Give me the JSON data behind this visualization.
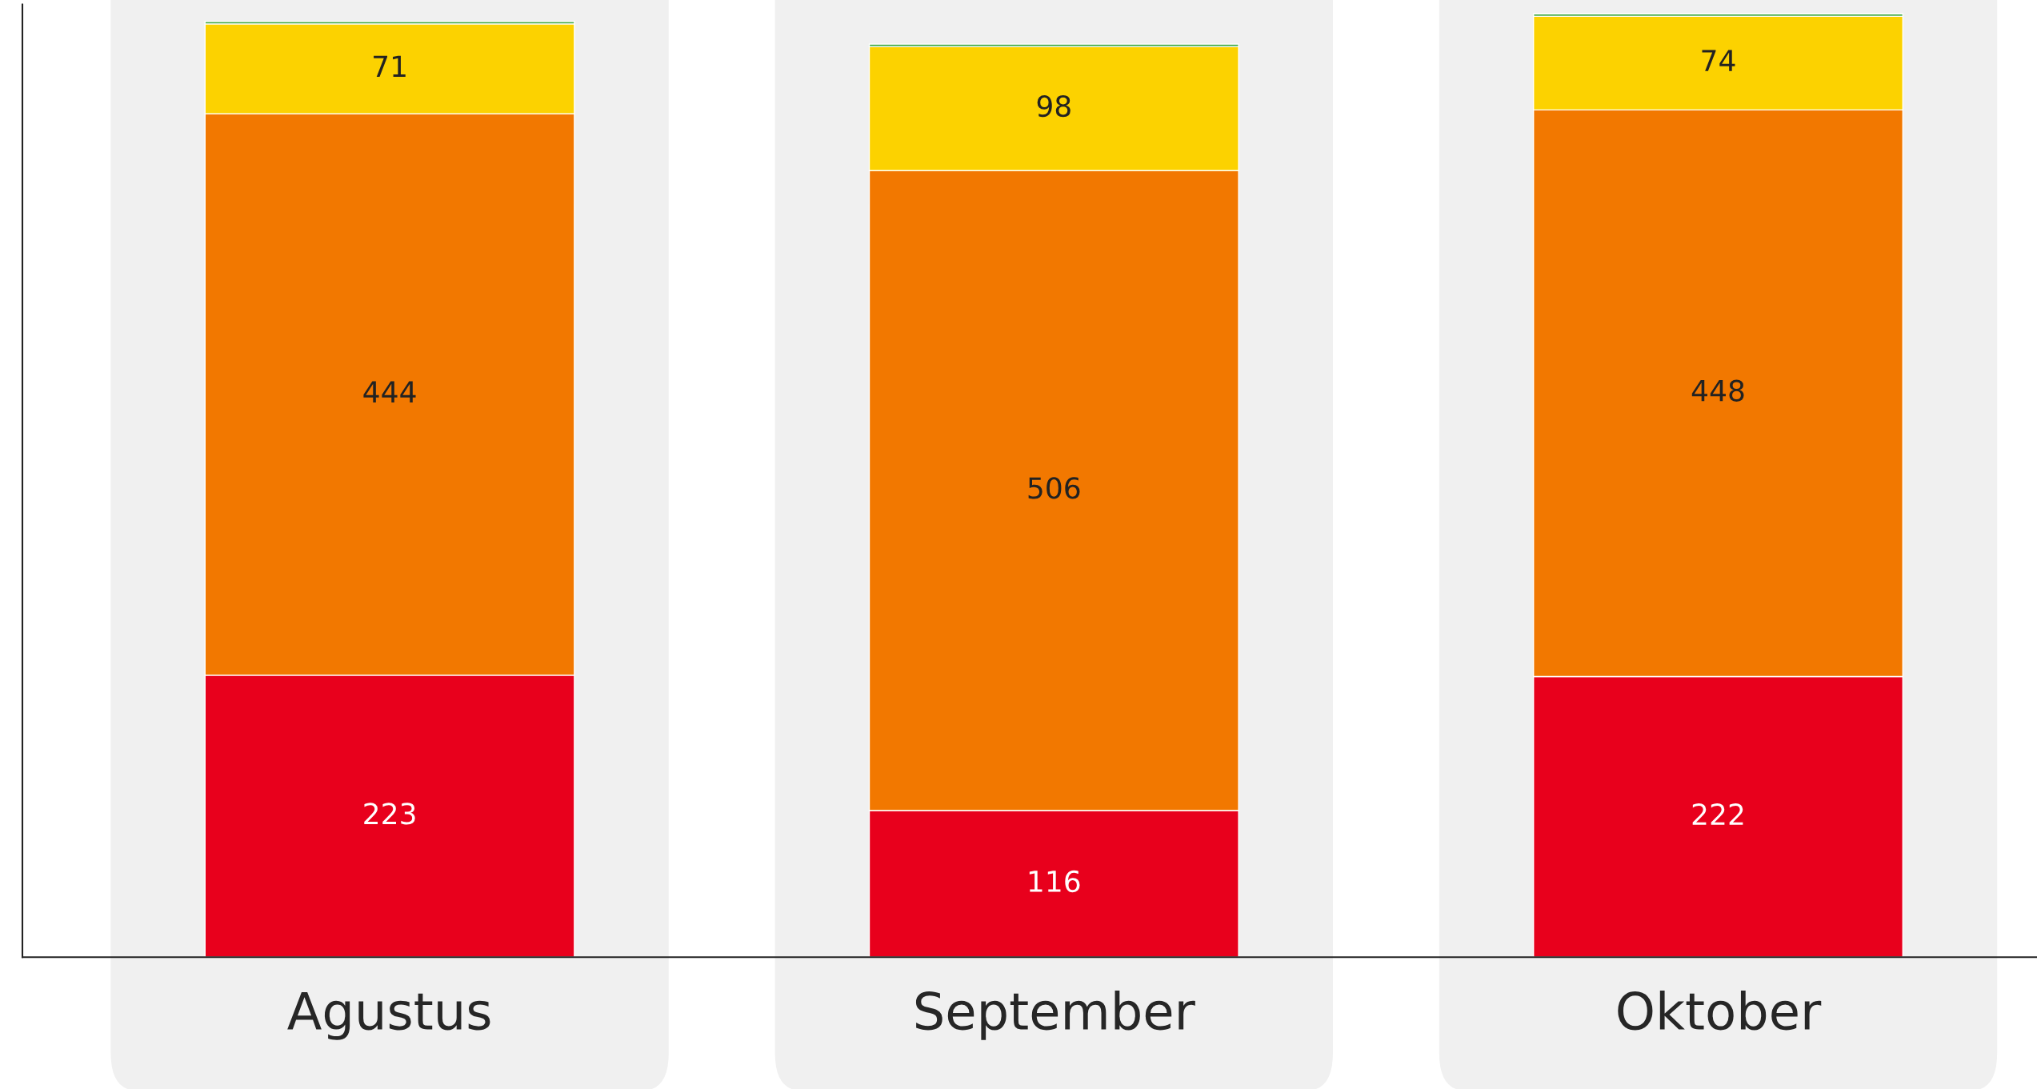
{
  "chart_data": {
    "type": "bar",
    "stacked": true,
    "categories": [
      "Agustus",
      "September",
      "Oktober"
    ],
    "series": [
      {
        "color": "#e8001c",
        "values": [
          223,
          116,
          222
        ],
        "value_labels": [
          "223",
          "116",
          "222"
        ]
      },
      {
        "color": "#f27800",
        "values": [
          444,
          506,
          448
        ],
        "value_labels": [
          "444",
          "506",
          "448"
        ]
      },
      {
        "color": "#fcd200",
        "values": [
          71,
          98,
          74
        ],
        "value_labels": [
          "71",
          "98",
          "74"
        ]
      },
      {
        "color": "#4caf50",
        "values": [
          2,
          2,
          2
        ],
        "value_labels": [
          null,
          null,
          null
        ]
      }
    ],
    "tick_labels": "x",
    "grid": false,
    "legend": false
  }
}
